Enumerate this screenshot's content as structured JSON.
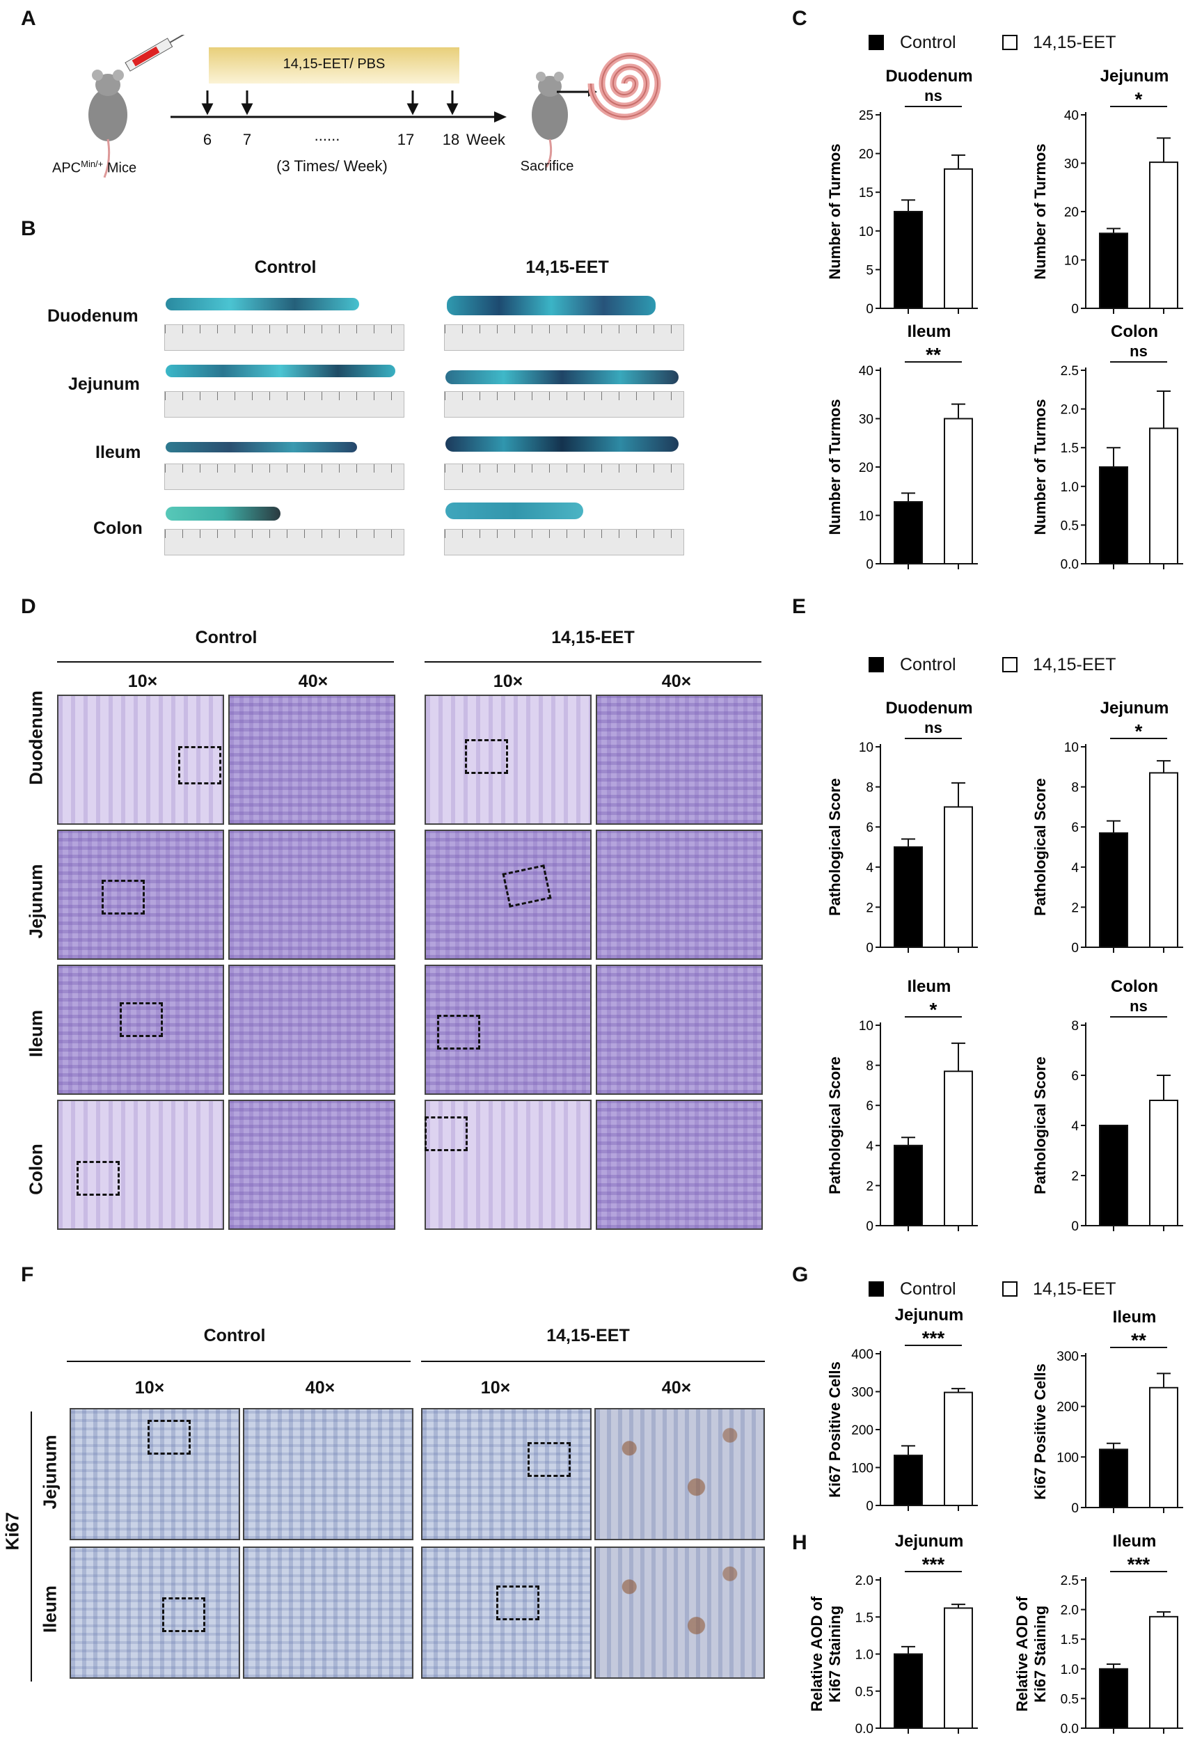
{
  "panels": {
    "A": "A",
    "B": "B",
    "C": "C",
    "D": "D",
    "E": "E",
    "F": "F",
    "G": "G",
    "H": "H"
  },
  "panel_a": {
    "treatment_bar": "14,15-EET/ PBS",
    "weeks": [
      "6",
      "7",
      "......",
      "17",
      "18"
    ],
    "week_label": "Week",
    "schedule": "(3 Times/ Week)",
    "mouse_prefix": "APC",
    "mouse_sup": "Min/+",
    "mouse_suffix": " Mice",
    "sacrifice": "Sacrifice"
  },
  "panel_b": {
    "groups": [
      "Control",
      "14,15-EET"
    ],
    "rows": [
      "Duodenum",
      "Jejunum",
      "Ileum",
      "Colon"
    ],
    "ruler_ticks": [
      "0",
      "1cm",
      "2",
      "3",
      "4",
      "5",
      "6",
      "7",
      "8",
      "9",
      "10",
      "11",
      "12",
      "13"
    ]
  },
  "panel_d": {
    "groups": [
      "Control",
      "14,15-EET"
    ],
    "mags": [
      "10×",
      "40×",
      "10×",
      "40×"
    ],
    "rows": [
      "Duodenum",
      "Jejunum",
      "Ileum",
      "Colon"
    ]
  },
  "panel_f": {
    "groups": [
      "Control",
      "14,15-EET"
    ],
    "mags": [
      "10×",
      "40×",
      "10×",
      "40×"
    ],
    "rows": [
      "Jejunum",
      "Ileum"
    ],
    "side_label": "Ki67"
  },
  "legend": {
    "control": "Control",
    "treated": "14,15-EET"
  },
  "colors": {
    "control": "#000000",
    "treated": "#ffffff",
    "axis": "#111111"
  },
  "chart_data": [
    {
      "panel": "C",
      "type": "bar",
      "title": "Duodenum",
      "ylabel": "Number of Turmos",
      "categories": [
        "Control",
        "14,15-EET"
      ],
      "values": [
        12.5,
        18.0
      ],
      "errors": [
        1.5,
        1.8
      ],
      "ylim": [
        0,
        25
      ],
      "yticks": [
        "0",
        "5",
        "10",
        "15",
        "20",
        "25"
      ],
      "significance": "ns"
    },
    {
      "panel": "C",
      "type": "bar",
      "title": "Jejunum",
      "ylabel": "Number of Turmos",
      "categories": [
        "Control",
        "14,15-EET"
      ],
      "values": [
        15.5,
        30.2
      ],
      "errors": [
        1.0,
        5.0
      ],
      "ylim": [
        0,
        40
      ],
      "yticks": [
        "0",
        "10",
        "20",
        "30",
        "40"
      ],
      "significance": "*"
    },
    {
      "panel": "C",
      "type": "bar",
      "title": "Ileum",
      "ylabel": "Number of Turmos",
      "categories": [
        "Control",
        "14,15-EET"
      ],
      "values": [
        12.8,
        30.0
      ],
      "errors": [
        1.8,
        3.0
      ],
      "ylim": [
        0,
        40
      ],
      "yticks": [
        "0",
        "10",
        "20",
        "30",
        "40"
      ],
      "significance": "**"
    },
    {
      "panel": "C",
      "type": "bar",
      "title": "Colon",
      "ylabel": "Number of Turmos",
      "categories": [
        "Control",
        "14,15-EET"
      ],
      "values": [
        1.25,
        1.75
      ],
      "errors": [
        0.25,
        0.48
      ],
      "ylim": [
        0,
        2.5
      ],
      "yticks": [
        "0.0",
        "0.5",
        "1.0",
        "1.5",
        "2.0",
        "2.5"
      ],
      "significance": "ns"
    },
    {
      "panel": "E",
      "type": "bar",
      "title": "Duodenum",
      "ylabel": "Pathological Score",
      "categories": [
        "Control",
        "14,15-EET"
      ],
      "values": [
        5.0,
        7.0
      ],
      "errors": [
        0.4,
        1.2
      ],
      "ylim": [
        0,
        10
      ],
      "yticks": [
        "0",
        "2",
        "4",
        "6",
        "8",
        "10"
      ],
      "significance": "ns"
    },
    {
      "panel": "E",
      "type": "bar",
      "title": "Jejunum",
      "ylabel": "Pathological Score",
      "categories": [
        "Control",
        "14,15-EET"
      ],
      "values": [
        5.7,
        8.7
      ],
      "errors": [
        0.6,
        0.6
      ],
      "ylim": [
        0,
        10
      ],
      "yticks": [
        "0",
        "2",
        "4",
        "6",
        "8",
        "10"
      ],
      "significance": "*"
    },
    {
      "panel": "E",
      "type": "bar",
      "title": "Ileum",
      "ylabel": "Pathological Score",
      "categories": [
        "Control",
        "14,15-EET"
      ],
      "values": [
        4.0,
        7.7
      ],
      "errors": [
        0.4,
        1.4
      ],
      "ylim": [
        0,
        10
      ],
      "yticks": [
        "0",
        "2",
        "4",
        "6",
        "8",
        "10"
      ],
      "significance": "*"
    },
    {
      "panel": "E",
      "type": "bar",
      "title": "Colon",
      "ylabel": "Pathological Score",
      "categories": [
        "Control",
        "14,15-EET"
      ],
      "values": [
        4.0,
        5.0
      ],
      "errors": [
        0.0,
        1.0
      ],
      "ylim": [
        0,
        8
      ],
      "yticks": [
        "0",
        "2",
        "4",
        "6",
        "8"
      ],
      "significance": "ns"
    },
    {
      "panel": "G",
      "type": "bar",
      "title": "Jejunum",
      "ylabel": "Ki67 Positive Cells",
      "categories": [
        "Control",
        "14,15-EET"
      ],
      "values": [
        132,
        298
      ],
      "errors": [
        25,
        10
      ],
      "ylim": [
        0,
        400
      ],
      "yticks": [
        "0",
        "100",
        "200",
        "300",
        "400"
      ],
      "significance": "***"
    },
    {
      "panel": "G",
      "type": "bar",
      "title": "Ileum",
      "ylabel": "Ki67 Positive Cells",
      "categories": [
        "Control",
        "14,15-EET"
      ],
      "values": [
        115,
        237
      ],
      "errors": [
        12,
        28
      ],
      "ylim": [
        0,
        300
      ],
      "yticks": [
        "0",
        "100",
        "200",
        "300"
      ],
      "significance": "**"
    },
    {
      "panel": "H",
      "type": "bar",
      "title": "Jejunum",
      "ylabel": "Relative AOD of",
      "ylabel2": "Ki67 Staining",
      "categories": [
        "Control",
        "14,15-EET"
      ],
      "values": [
        1.0,
        1.62
      ],
      "errors": [
        0.1,
        0.05
      ],
      "ylim": [
        0,
        2.0
      ],
      "yticks": [
        "0.0",
        "0.5",
        "1.0",
        "1.5",
        "2.0"
      ],
      "significance": "***"
    },
    {
      "panel": "H",
      "type": "bar",
      "title": "Ileum",
      "ylabel": "Relative AOD of",
      "ylabel2": "Ki67 Staining",
      "categories": [
        "Control",
        "14,15-EET"
      ],
      "values": [
        1.0,
        1.88
      ],
      "errors": [
        0.08,
        0.08
      ],
      "ylim": [
        0,
        2.5
      ],
      "yticks": [
        "0.0",
        "0.5",
        "1.0",
        "1.5",
        "2.0",
        "2.5"
      ],
      "significance": "***"
    }
  ]
}
